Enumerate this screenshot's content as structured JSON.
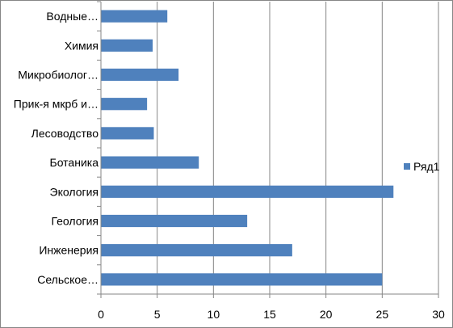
{
  "chart_data": {
    "type": "bar",
    "orientation": "horizontal",
    "categories": [
      "Сельское…",
      "Инженерия",
      "Геология",
      "Экология",
      "Ботаника",
      "Лесоводство",
      "Прик-я мкрб и…",
      "Микробиолог…",
      "Химия",
      "Водные…"
    ],
    "series": [
      {
        "name": "Ряд1",
        "values": [
          25,
          17,
          13,
          26,
          8.7,
          4.7,
          4.1,
          6.9,
          4.6,
          5.9
        ],
        "color": "#4F81BD"
      }
    ],
    "xlim": [
      0,
      30
    ],
    "x_ticks": [
      "0",
      "5",
      "10",
      "15",
      "20",
      "25",
      "30"
    ],
    "grid": "vertical",
    "legend_position": "right"
  }
}
